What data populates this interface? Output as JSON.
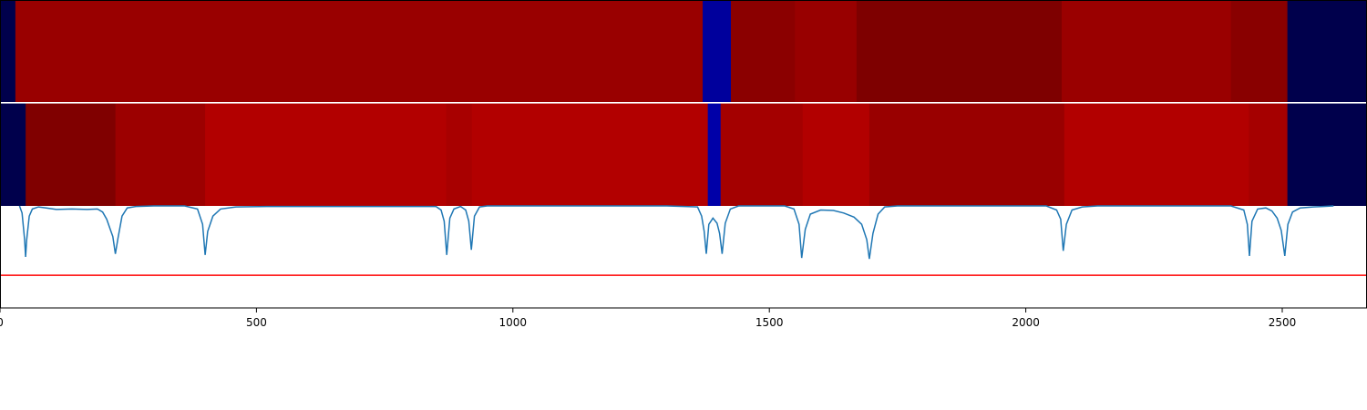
{
  "chart_data": {
    "type": "segmentation-timeline",
    "x_axis": {
      "range": [
        0,
        2665
      ],
      "ticks": [
        0,
        500,
        1000,
        1500,
        2000,
        2500
      ],
      "tick_labels": [
        "0",
        "500",
        "1000",
        "1500",
        "2000",
        "2500"
      ]
    },
    "tracks": [
      {
        "type": "heatmap",
        "segments": [
          {
            "start": 0,
            "end": 30,
            "color": "#00004c"
          },
          {
            "start": 30,
            "end": 1370,
            "color": "#990000"
          },
          {
            "start": 1370,
            "end": 1425,
            "color": "#00009c"
          },
          {
            "start": 1425,
            "end": 1550,
            "color": "#8b0000"
          },
          {
            "start": 1550,
            "end": 1670,
            "color": "#980000"
          },
          {
            "start": 1670,
            "end": 2070,
            "color": "#7e0000"
          },
          {
            "start": 2070,
            "end": 2400,
            "color": "#9a0000"
          },
          {
            "start": 2400,
            "end": 2510,
            "color": "#890000"
          },
          {
            "start": 2510,
            "end": 2665,
            "color": "#00004c"
          }
        ]
      },
      {
        "type": "heatmap",
        "segments": [
          {
            "start": 0,
            "end": 50,
            "color": "#00004c"
          },
          {
            "start": 50,
            "end": 225,
            "color": "#800000"
          },
          {
            "start": 225,
            "end": 400,
            "color": "#9c0000"
          },
          {
            "start": 400,
            "end": 870,
            "color": "#b20000"
          },
          {
            "start": 870,
            "end": 920,
            "color": "#a80000"
          },
          {
            "start": 920,
            "end": 1380,
            "color": "#b20000"
          },
          {
            "start": 1380,
            "end": 1405,
            "color": "#0000a8"
          },
          {
            "start": 1405,
            "end": 1565,
            "color": "#a40000"
          },
          {
            "start": 1565,
            "end": 1695,
            "color": "#b20000"
          },
          {
            "start": 1695,
            "end": 2075,
            "color": "#990000"
          },
          {
            "start": 2075,
            "end": 2435,
            "color": "#b20000"
          },
          {
            "start": 2435,
            "end": 2510,
            "color": "#a50000"
          },
          {
            "start": 2510,
            "end": 2665,
            "color": "#00004c"
          }
        ]
      }
    ],
    "line_plot": {
      "type": "line",
      "ylim": [
        0,
        1
      ],
      "line_color": "#1f77b4",
      "threshold": 0.32,
      "threshold_color": "#ff0000",
      "points": [
        [
          38,
          1.0
        ],
        [
          43,
          0.93
        ],
        [
          48,
          0.67
        ],
        [
          50,
          0.5
        ],
        [
          52,
          0.67
        ],
        [
          57,
          0.9
        ],
        [
          63,
          0.97
        ],
        [
          75,
          0.99
        ],
        [
          90,
          0.98
        ],
        [
          110,
          0.965
        ],
        [
          140,
          0.97
        ],
        [
          170,
          0.965
        ],
        [
          190,
          0.97
        ],
        [
          200,
          0.94
        ],
        [
          208,
          0.87
        ],
        [
          215,
          0.77
        ],
        [
          220,
          0.7
        ],
        [
          225,
          0.53
        ],
        [
          230,
          0.68
        ],
        [
          238,
          0.9
        ],
        [
          248,
          0.98
        ],
        [
          265,
          0.995
        ],
        [
          300,
          1.0
        ],
        [
          360,
          1.0
        ],
        [
          385,
          0.97
        ],
        [
          395,
          0.82
        ],
        [
          400,
          0.52
        ],
        [
          405,
          0.75
        ],
        [
          415,
          0.9
        ],
        [
          430,
          0.97
        ],
        [
          460,
          0.99
        ],
        [
          520,
          0.995
        ],
        [
          700,
          0.995
        ],
        [
          850,
          0.995
        ],
        [
          860,
          0.96
        ],
        [
          866,
          0.85
        ],
        [
          871,
          0.52
        ],
        [
          877,
          0.88
        ],
        [
          885,
          0.97
        ],
        [
          898,
          0.995
        ],
        [
          908,
          0.96
        ],
        [
          914,
          0.85
        ],
        [
          919,
          0.57
        ],
        [
          925,
          0.9
        ],
        [
          935,
          0.99
        ],
        [
          950,
          1.0
        ],
        [
          1300,
          1.0
        ],
        [
          1360,
          0.99
        ],
        [
          1368,
          0.9
        ],
        [
          1373,
          0.75
        ],
        [
          1377,
          0.53
        ],
        [
          1382,
          0.82
        ],
        [
          1390,
          0.88
        ],
        [
          1398,
          0.83
        ],
        [
          1403,
          0.73
        ],
        [
          1408,
          0.53
        ],
        [
          1414,
          0.83
        ],
        [
          1424,
          0.97
        ],
        [
          1440,
          1.0
        ],
        [
          1530,
          1.0
        ],
        [
          1548,
          0.97
        ],
        [
          1558,
          0.82
        ],
        [
          1563,
          0.49
        ],
        [
          1570,
          0.77
        ],
        [
          1580,
          0.92
        ],
        [
          1600,
          0.96
        ],
        [
          1625,
          0.955
        ],
        [
          1645,
          0.93
        ],
        [
          1665,
          0.89
        ],
        [
          1680,
          0.82
        ],
        [
          1690,
          0.67
        ],
        [
          1695,
          0.48
        ],
        [
          1702,
          0.73
        ],
        [
          1712,
          0.92
        ],
        [
          1725,
          0.99
        ],
        [
          1750,
          1.0
        ],
        [
          2040,
          1.0
        ],
        [
          2060,
          0.96
        ],
        [
          2068,
          0.87
        ],
        [
          2073,
          0.56
        ],
        [
          2079,
          0.82
        ],
        [
          2090,
          0.96
        ],
        [
          2110,
          0.99
        ],
        [
          2140,
          1.0
        ],
        [
          2400,
          1.0
        ],
        [
          2425,
          0.96
        ],
        [
          2432,
          0.82
        ],
        [
          2436,
          0.51
        ],
        [
          2441,
          0.85
        ],
        [
          2452,
          0.97
        ],
        [
          2468,
          0.98
        ],
        [
          2480,
          0.95
        ],
        [
          2490,
          0.88
        ],
        [
          2498,
          0.76
        ],
        [
          2505,
          0.51
        ],
        [
          2511,
          0.82
        ],
        [
          2520,
          0.94
        ],
        [
          2535,
          0.98
        ],
        [
          2560,
          0.99
        ],
        [
          2580,
          0.995
        ],
        [
          2600,
          1.0
        ]
      ]
    }
  }
}
